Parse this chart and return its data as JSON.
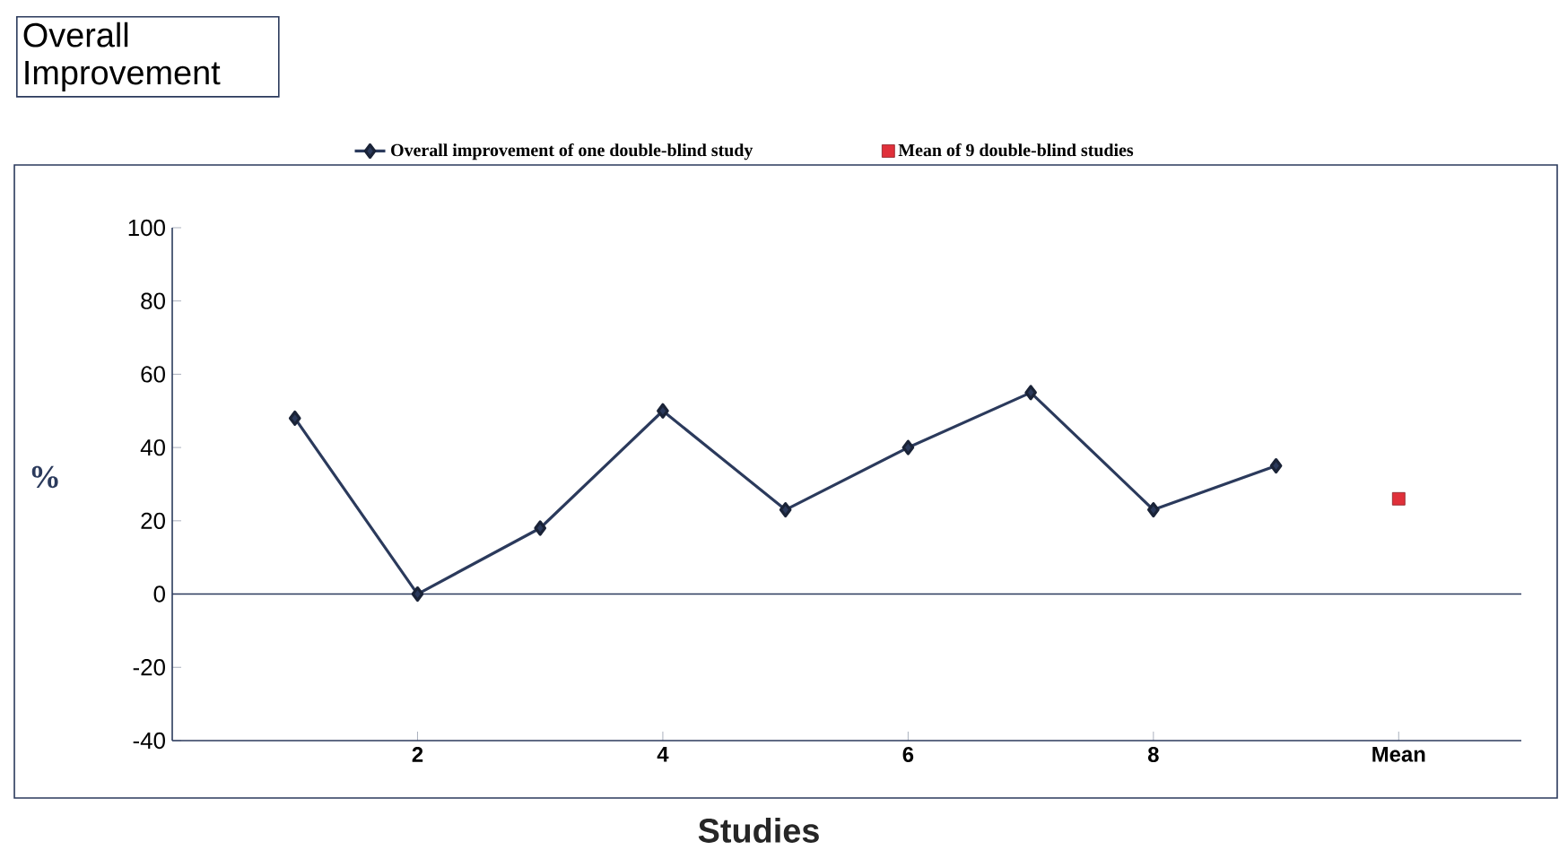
{
  "chart_data": {
    "type": "line",
    "title": "Overall Improvement",
    "xlabel": "Studies",
    "ylabel": "%",
    "xlim": [
      0,
      11
    ],
    "xticks": [
      2,
      4,
      6,
      8,
      {
        "value": 10,
        "label": "Mean"
      }
    ],
    "ylim": [
      -40,
      100
    ],
    "yticks": [
      -40,
      -20,
      0,
      20,
      40,
      60,
      80,
      100
    ],
    "legend": "top",
    "ref_lines": [
      {
        "axis": "y",
        "value": 0,
        "color": "#2b3a5c"
      }
    ],
    "series": [
      {
        "name": "Overall improvement of one double-blind study",
        "marker": "diamond",
        "color": "#2b3a5c",
        "x": [
          1,
          2,
          3,
          4,
          5,
          6,
          7,
          8,
          9
        ],
        "values": [
          48,
          0,
          18,
          50,
          23,
          40,
          55,
          23,
          35
        ]
      },
      {
        "name": "Mean of 9 double-blind studies",
        "type": "scatter",
        "marker": "square",
        "color": "#e0303a",
        "x": [
          10
        ],
        "values": [
          26
        ]
      }
    ]
  }
}
